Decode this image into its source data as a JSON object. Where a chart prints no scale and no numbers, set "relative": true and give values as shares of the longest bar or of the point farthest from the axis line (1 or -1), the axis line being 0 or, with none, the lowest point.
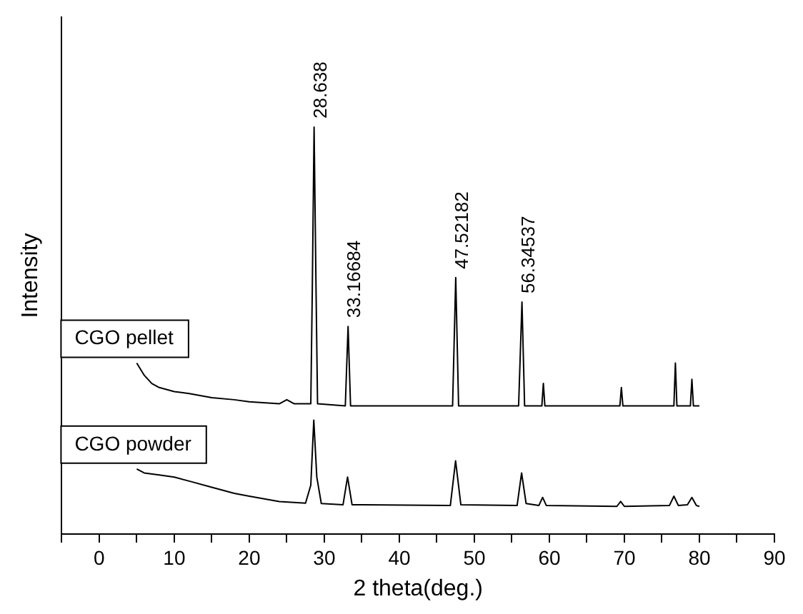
{
  "chart_data": {
    "type": "line",
    "relative": true,
    "xlabel": "2 theta(deg.)",
    "ylabel": "Intensity",
    "xlim": [
      -5,
      90
    ],
    "xticks": [
      {
        "value": -5,
        "label": null
      },
      0,
      {
        "value": 5,
        "label": null
      },
      10,
      {
        "value": 15,
        "label": null
      },
      20,
      {
        "value": 25,
        "label": null
      },
      30,
      {
        "value": 35,
        "label": null
      },
      40,
      {
        "value": 45,
        "label": null
      },
      50,
      {
        "value": 55,
        "label": null
      },
      60,
      {
        "value": 65,
        "label": null
      },
      70,
      {
        "value": 75,
        "label": null
      },
      80,
      {
        "value": 85,
        "label": null
      },
      90
    ],
    "tick_labels": "x",
    "marker": "none",
    "line_style": "solid",
    "series": [
      {
        "name": "CGO pellet",
        "color": "#000000",
        "x": [
          5,
          6,
          7,
          8,
          10,
          12,
          15,
          18,
          20,
          24,
          25,
          26,
          28.2,
          28.4,
          28.64,
          28.9,
          29.1,
          32.8,
          33.17,
          33.5,
          47.1,
          47.52,
          47.9,
          55.9,
          56.35,
          56.7,
          59.0,
          59.2,
          59.4,
          69.4,
          69.6,
          69.8,
          76.6,
          76.8,
          77,
          78.8,
          79,
          79.2,
          80
        ],
        "values": [
          0.42,
          0.39,
          0.37,
          0.36,
          0.35,
          0.345,
          0.335,
          0.33,
          0.325,
          0.32,
          0.33,
          0.32,
          0.32,
          0.6,
          1,
          0.6,
          0.32,
          0.315,
          0.51,
          0.315,
          0.315,
          0.63,
          0.315,
          0.315,
          0.57,
          0.315,
          0.315,
          0.37,
          0.315,
          0.315,
          0.36,
          0.315,
          0.315,
          0.42,
          0.315,
          0.315,
          0.38,
          0.315,
          0.315
        ]
      },
      {
        "name": "CGO powder",
        "color": "#000000",
        "x": [
          5,
          6,
          8,
          10,
          12,
          15,
          18,
          20,
          24,
          27.5,
          28.2,
          28.6,
          29,
          29.6,
          32.5,
          33.1,
          33.7,
          46.8,
          47.5,
          48.2,
          55.7,
          56.3,
          56.9,
          58.6,
          59.1,
          59.6,
          69,
          69.5,
          70,
          76,
          76.6,
          77.2,
          78.4,
          79,
          79.6,
          80
        ],
        "values": [
          0.16,
          0.15,
          0.145,
          0.14,
          0.13,
          0.115,
          0.1,
          0.093,
          0.08,
          0.076,
          0.12,
          0.28,
          0.14,
          0.075,
          0.072,
          0.14,
          0.072,
          0.07,
          0.18,
          0.072,
          0.07,
          0.15,
          0.075,
          0.07,
          0.09,
          0.07,
          0.068,
          0.08,
          0.068,
          0.07,
          0.093,
          0.07,
          0.072,
          0.09,
          0.07,
          0.068
        ]
      }
    ],
    "annotations": [
      {
        "text": "28.638",
        "x": 28.638,
        "y": 1
      },
      {
        "text": "33.16684",
        "x": 33.16684,
        "y": 0.51
      },
      {
        "text": "47.52182",
        "x": 47.52182,
        "y": 0.63
      },
      {
        "text": "56.34537",
        "x": 56.34537,
        "y": 0.57
      }
    ]
  }
}
